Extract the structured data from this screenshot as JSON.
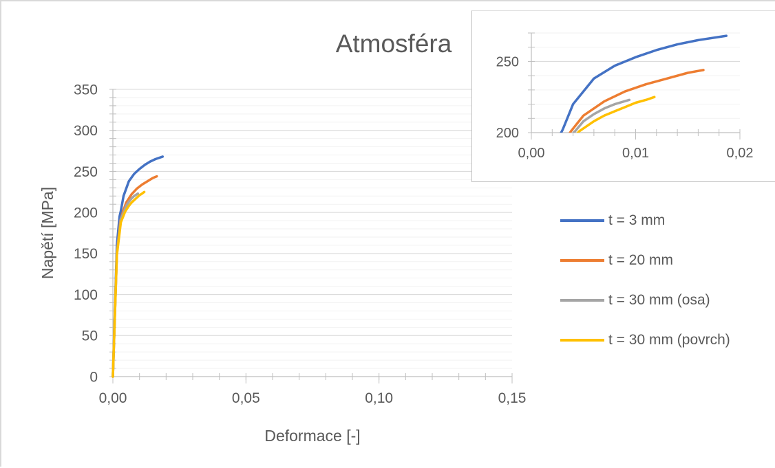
{
  "chart_data": [
    {
      "type": "line",
      "title": "Atmosféra",
      "xlabel": "Deformace [-]",
      "ylabel": "Napětí [MPa]",
      "xlim": [
        0,
        0.15
      ],
      "ylim": [
        0,
        350
      ],
      "xticks": [
        "0,00",
        "0,05",
        "0,10",
        "0,15"
      ],
      "yticks": [
        "0",
        "50",
        "100",
        "150",
        "200",
        "250",
        "300",
        "350"
      ],
      "grid": true,
      "legend_position": "right",
      "series": [
        {
          "name": "t = 3 mm",
          "color": "#4472c4",
          "x": [
            0,
            0.0015,
            0.0025,
            0.003,
            0.004,
            0.006,
            0.008,
            0.01,
            0.012,
            0.014,
            0.016,
            0.0187
          ],
          "y": [
            0,
            160,
            195,
            202,
            220,
            238,
            247,
            253,
            258,
            262,
            265,
            268
          ]
        },
        {
          "name": "t = 20 mm",
          "color": "#ed7d31",
          "x": [
            0,
            0.0015,
            0.0028,
            0.0038,
            0.005,
            0.007,
            0.009,
            0.011,
            0.013,
            0.015,
            0.0165
          ],
          "y": [
            0,
            150,
            190,
            201,
            212,
            222,
            229,
            234,
            238,
            242,
            244
          ]
        },
        {
          "name": "t = 30 mm (osa)",
          "color": "#a5a5a5",
          "x": [
            0,
            0.0015,
            0.003,
            0.0042,
            0.005,
            0.006,
            0.007,
            0.008,
            0.0094
          ],
          "y": [
            0,
            150,
            192,
            201,
            208,
            213,
            217,
            220,
            223
          ]
        },
        {
          "name": "t = 30 mm (povrch)",
          "color": "#ffc000",
          "x": [
            0,
            0.0015,
            0.003,
            0.0046,
            0.006,
            0.007,
            0.008,
            0.009,
            0.01,
            0.011,
            0.0118
          ],
          "y": [
            0,
            148,
            188,
            201,
            208,
            212,
            215,
            218,
            221,
            223,
            225
          ]
        }
      ]
    },
    {
      "type": "line",
      "title": "",
      "xlim": [
        0,
        0.02
      ],
      "ylim": [
        200,
        270
      ],
      "xticks": [
        "0,00",
        "0,01",
        "0,02"
      ],
      "yticks": [
        "200",
        "250"
      ],
      "grid": true,
      "series_ref": "same as main chart"
    }
  ],
  "legend": [
    {
      "label": "t = 3 mm",
      "color": "#4472c4"
    },
    {
      "label": "t = 20 mm",
      "color": "#ed7d31"
    },
    {
      "label": "t = 30 mm (osa)",
      "color": "#a5a5a5"
    },
    {
      "label": "t = 30 mm (povrch)",
      "color": "#ffc000"
    }
  ]
}
